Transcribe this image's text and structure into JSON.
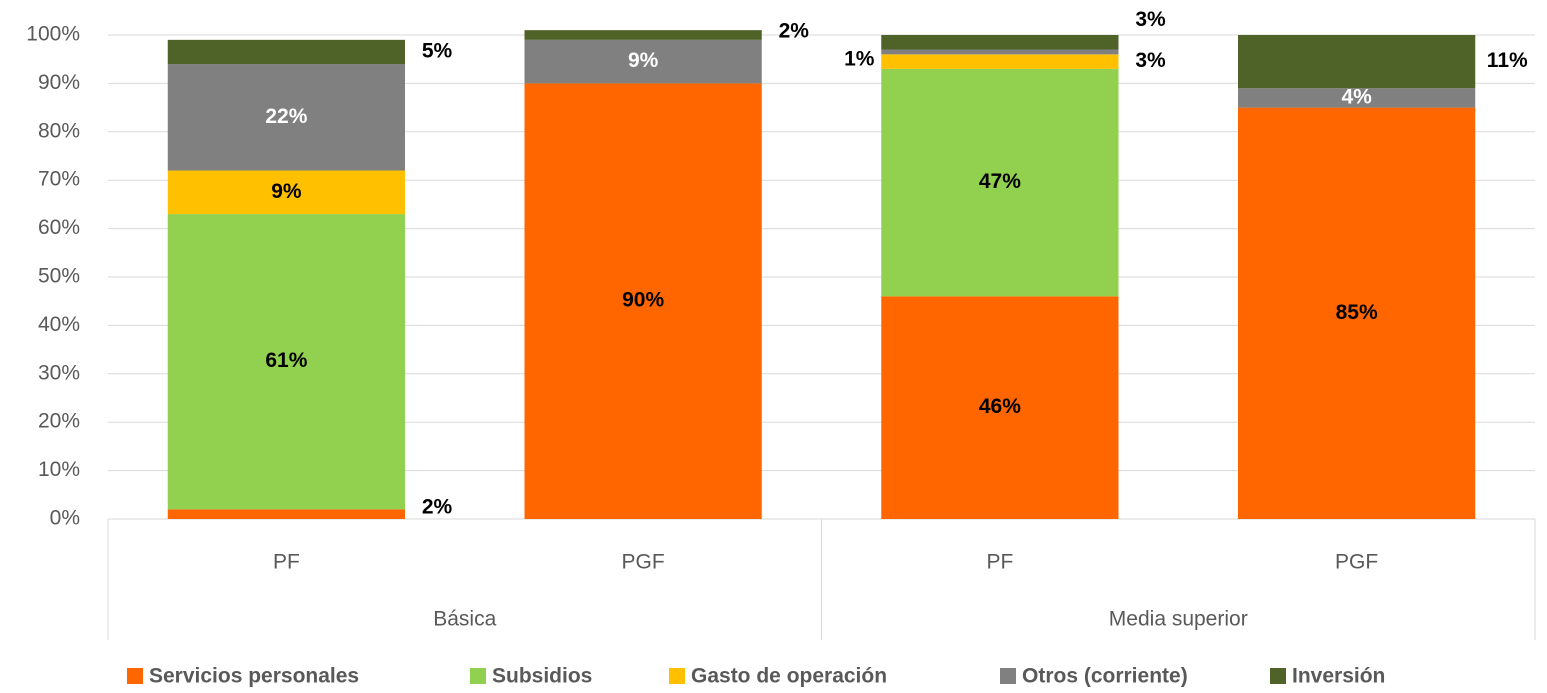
{
  "chart_data": {
    "type": "stacked_bar",
    "categories": [
      "PF",
      "PGF",
      "PF",
      "PGF"
    ],
    "groups": [
      {
        "name": "Básica",
        "size": 2
      },
      {
        "name": "Media superior",
        "size": 2
      }
    ],
    "series": [
      {
        "name": "Servicios personales",
        "color": "#ff6600",
        "label_color": "#000000",
        "values": [
          2,
          90,
          46,
          85
        ],
        "value_labels": [
          "2%",
          "90%",
          "46%",
          "85%"
        ]
      },
      {
        "name": "Subsidios",
        "color": "#92d050",
        "label_color": "#000000",
        "values": [
          61,
          null,
          47,
          null
        ],
        "value_labels": [
          "61%",
          null,
          "47%",
          null
        ]
      },
      {
        "name": "Gasto de operación",
        "color": "#ffc000",
        "label_color": "#000000",
        "values": [
          9,
          null,
          3,
          null
        ],
        "value_labels": [
          "9%",
          null,
          "3%",
          null
        ]
      },
      {
        "name": "Otros (corriente)",
        "color": "#808080",
        "label_color": "#ffffff",
        "values": [
          22,
          9,
          1,
          4
        ],
        "value_labels": [
          "22%",
          "9%",
          "1%",
          "4%"
        ]
      },
      {
        "name": "Inversión",
        "color": "#4f6228",
        "label_color": "#000000",
        "values": [
          5,
          2,
          3,
          11
        ],
        "value_labels": [
          "5%",
          "2%",
          "3%",
          "11%"
        ]
      }
    ],
    "ylim": [
      0,
      100
    ],
    "yticks": [
      {
        "value": 0,
        "label": "0%"
      },
      {
        "value": 10,
        "label": "10%"
      },
      {
        "value": 20,
        "label": "20%"
      },
      {
        "value": 30,
        "label": "30%"
      },
      {
        "value": 40,
        "label": "40%"
      },
      {
        "value": 50,
        "label": "50%"
      },
      {
        "value": 60,
        "label": "60%"
      },
      {
        "value": 70,
        "label": "70%"
      },
      {
        "value": 80,
        "label": "80%"
      },
      {
        "value": 90,
        "label": "90%"
      },
      {
        "value": 100,
        "label": "100%"
      }
    ],
    "grid": true,
    "legend": "bottom"
  }
}
